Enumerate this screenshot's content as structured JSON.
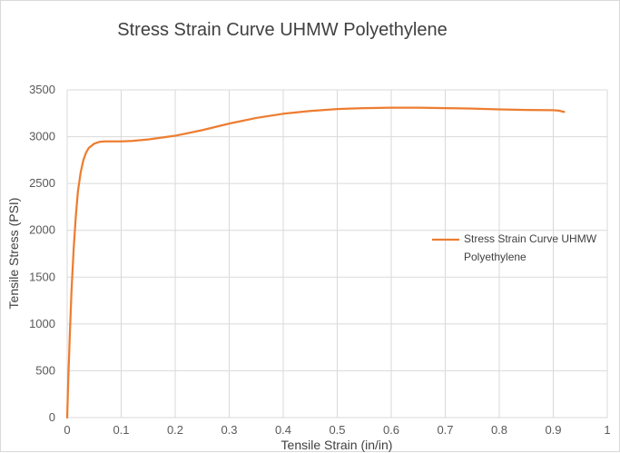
{
  "chart_data": {
    "type": "line",
    "title": "Stress Strain Curve UHMW Polyethylene",
    "xlabel": "Tensile Strain (in/in)",
    "ylabel": "Tensile Stress (PSI)",
    "xlim": [
      0,
      1
    ],
    "ylim": [
      0,
      3500
    ],
    "x_ticks": [
      "0",
      "0.1",
      "0.2",
      "0.3",
      "0.4",
      "0.5",
      "0.6",
      "0.7",
      "0.8",
      "0.9",
      "1"
    ],
    "y_ticks": [
      "0",
      "500",
      "1000",
      "1500",
      "2000",
      "2500",
      "3000",
      "3500"
    ],
    "grid": true,
    "legend_position": "right",
    "series": [
      {
        "name": "Stress Strain Curve UHMW Polyethylene",
        "legend_lines": [
          "Stress Strain Curve UHMW",
          "Polyethylene"
        ],
        "color": "#ED7D31",
        "x": [
          0,
          0.002,
          0.005,
          0.008,
          0.012,
          0.016,
          0.02,
          0.025,
          0.03,
          0.035,
          0.04,
          0.05,
          0.06,
          0.07,
          0.08,
          0.1,
          0.12,
          0.15,
          0.2,
          0.25,
          0.3,
          0.35,
          0.4,
          0.45,
          0.5,
          0.55,
          0.6,
          0.65,
          0.7,
          0.75,
          0.8,
          0.85,
          0.9,
          0.91,
          0.92
        ],
        "y": [
          0,
          400,
          900,
          1350,
          1800,
          2150,
          2420,
          2620,
          2750,
          2830,
          2880,
          2925,
          2945,
          2950,
          2950,
          2950,
          2955,
          2970,
          3010,
          3070,
          3140,
          3200,
          3245,
          3275,
          3295,
          3305,
          3310,
          3310,
          3305,
          3300,
          3292,
          3285,
          3283,
          3278,
          3265
        ]
      }
    ]
  }
}
